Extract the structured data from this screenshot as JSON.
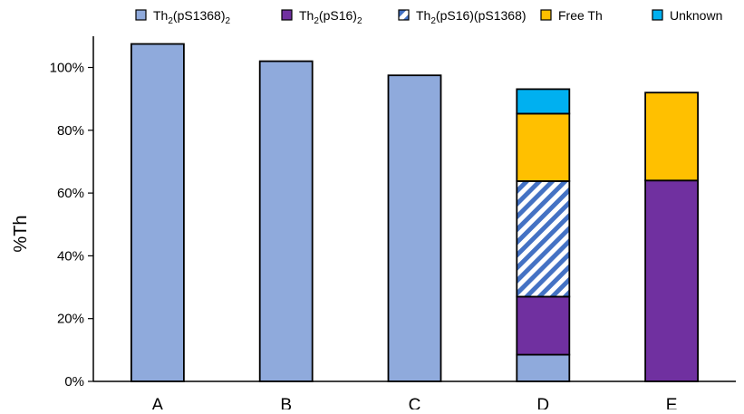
{
  "chart_data": {
    "type": "bar",
    "stacked": true,
    "title": "",
    "xlabel": "",
    "ylabel": "%Th",
    "ylim": [
      0,
      110
    ],
    "yticks": [
      0,
      20,
      40,
      60,
      80,
      100
    ],
    "ytick_labels": [
      "0%",
      "20%",
      "40%",
      "60%",
      "80%",
      "100%"
    ],
    "grid": false,
    "legend_position": "top",
    "categories": [
      "A",
      "B",
      "C",
      "D",
      "E"
    ],
    "series": [
      {
        "name_base": "Th",
        "name_sub1": "2",
        "name_mid": "(pS1368)",
        "name_sub2": "2",
        "color": "#8faadc",
        "pattern": "solid",
        "values": [
          107.5,
          102,
          97.5,
          8.5,
          0
        ]
      },
      {
        "name_base": "Th",
        "name_sub1": "2",
        "name_mid": "(pS16)",
        "name_sub2": "2",
        "color": "#7030a0",
        "pattern": "solid",
        "values": [
          0,
          0,
          0,
          18.5,
          64
        ]
      },
      {
        "name_base": "Th",
        "name_sub1": "2",
        "name_mid": "(pS16)(pS1368)",
        "name_sub2": "",
        "color": "#4472c4",
        "pattern": "diagonal-stripes",
        "values": [
          0,
          0,
          0,
          36.8,
          0
        ]
      },
      {
        "name": "Free Th",
        "color": "#ffc000",
        "pattern": "solid",
        "values": [
          0,
          0,
          0,
          21.5,
          28
        ]
      },
      {
        "name": "Unknown",
        "color": "#00b0f0",
        "pattern": "solid",
        "values": [
          0,
          0,
          0,
          7.8,
          0
        ]
      }
    ]
  }
}
